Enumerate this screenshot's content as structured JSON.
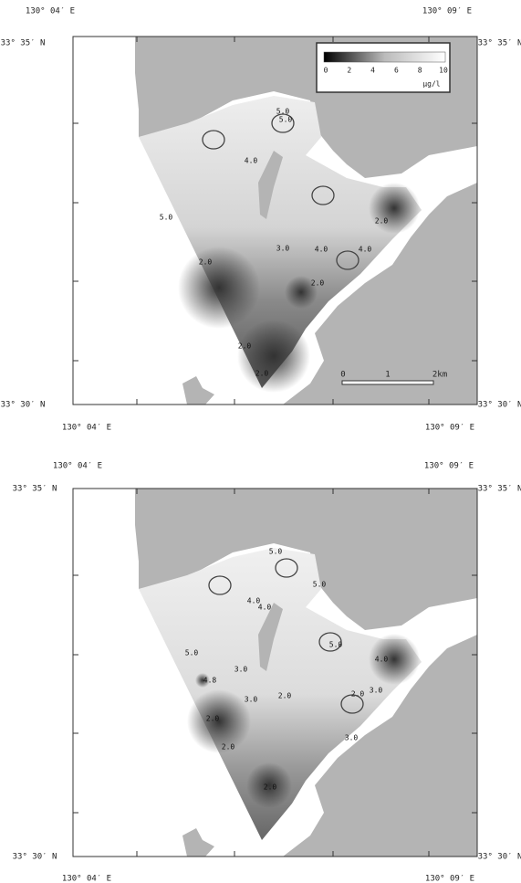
{
  "panels": [
    {
      "top_labels": [
        "130° 04′ E",
        "130° 09′ E"
      ],
      "left_labels": [
        "33° 35′ N",
        "33° 30′ N"
      ],
      "right_labels": [
        "33° 35′ N",
        "33° 30′ N"
      ],
      "bottom_labels": [
        "130° 04′ E",
        "130° 09′ E"
      ],
      "contour_labels": [
        "5.0",
        "5.0",
        "4.0",
        "5.0",
        "2.0",
        "3.0",
        "4.0",
        "4.0",
        "2.0",
        "2.0",
        "2.0",
        "2.0"
      ]
    },
    {
      "top_labels": [
        "130° 04′ E",
        "130° 09′ E"
      ],
      "left_labels": [
        "33° 35′ N",
        "33° 30′ N"
      ],
      "right_labels": [
        "33° 35′ N",
        "33° 30′ N"
      ],
      "bottom_labels": [
        "130° 04′ E",
        "130° 09′ E"
      ],
      "contour_labels": [
        "5.0",
        "5.0",
        "4.0",
        "4.0",
        "5.0",
        "4.0",
        "5.0",
        "3.0",
        "4.8",
        "2.0",
        "3.0",
        "2.0",
        "3.0",
        "2.0",
        "3.0",
        "2.0",
        "2.0"
      ]
    }
  ],
  "legend": {
    "ticks": [
      0,
      2,
      4,
      6,
      8,
      10
    ],
    "unit": "μg/l"
  },
  "scale_bar": {
    "ticks": [
      "0",
      "1",
      "2km"
    ]
  }
}
